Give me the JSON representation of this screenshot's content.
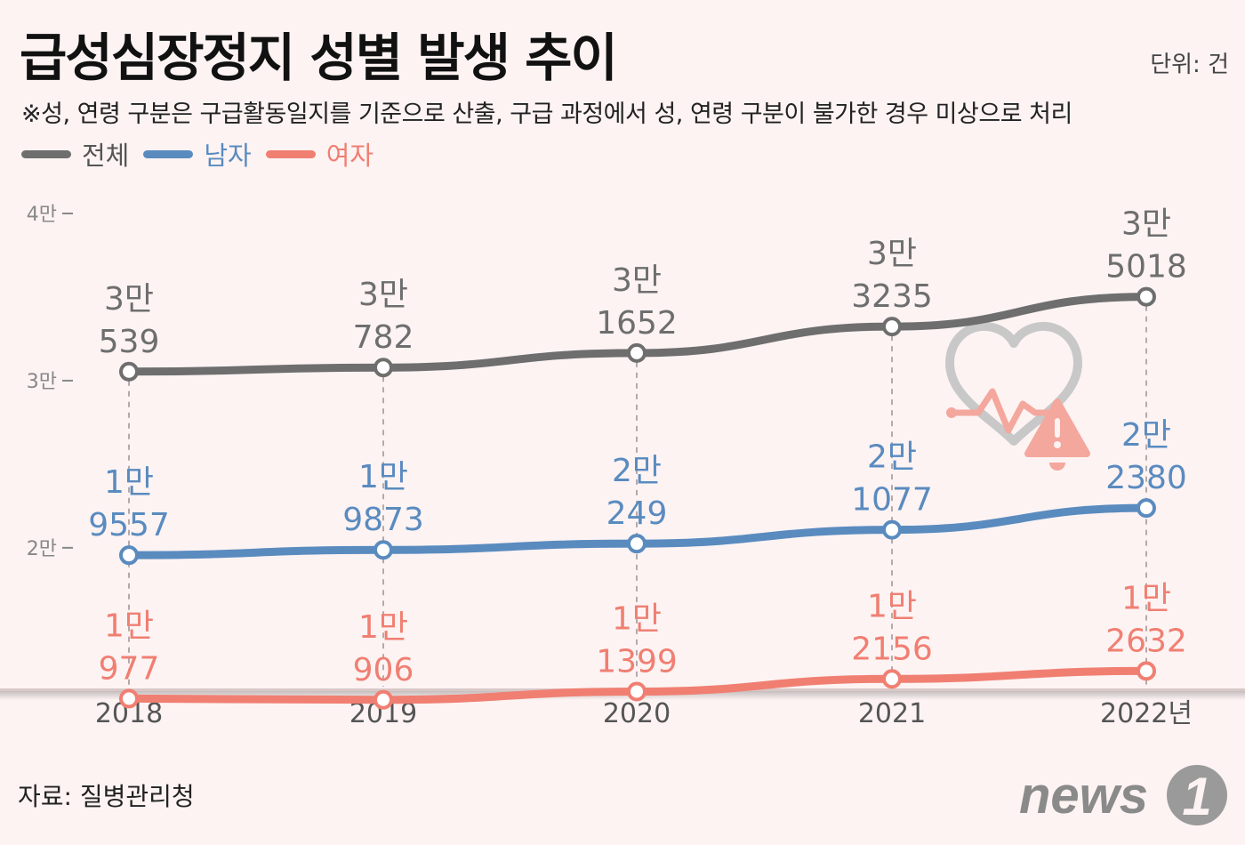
{
  "title": "급성심장정지 성별 발생 추이",
  "unit_label": "단위: 건",
  "note": "※성, 연령 구분은 구급활동일지를 기준으로 산출, 구급 과정에서 성, 연령 구분이 불가한 경우 미상으로 처리",
  "source": "자료: 질병관리청",
  "logo": {
    "text": "news",
    "digit": "1"
  },
  "colors": {
    "total": "#6e6e6e",
    "male": "#5a8bbf",
    "female": "#f07f72",
    "background": "#fdf3f3"
  },
  "chart_data": {
    "type": "line",
    "title": "급성심장정지 성별 발생 추이",
    "x": [
      "2018",
      "2019",
      "2020",
      "2021",
      "2022"
    ],
    "x_tick_labels": [
      "2018",
      "2019",
      "2020",
      "2021",
      "2022년"
    ],
    "y_ticks": [
      {
        "value": 40000,
        "label": "4만"
      },
      {
        "value": 30000,
        "label": "3만"
      },
      {
        "value": 20000,
        "label": "2만"
      }
    ],
    "ylim": [
      11000,
      40000
    ],
    "grid": false,
    "legend": "top-left",
    "series": [
      {
        "key": "total",
        "name": "전체",
        "color": "#6e6e6e",
        "values": [
          30539,
          30782,
          31652,
          33235,
          35018
        ],
        "labels": [
          [
            "3만",
            "539"
          ],
          [
            "3만",
            "782"
          ],
          [
            "3만",
            "1652"
          ],
          [
            "3만",
            "3235"
          ],
          [
            "3만",
            "5018"
          ]
        ]
      },
      {
        "key": "male",
        "name": "남자",
        "color": "#5a8bbf",
        "values": [
          19557,
          19873,
          20249,
          21077,
          22380
        ],
        "labels": [
          [
            "1만",
            "9557"
          ],
          [
            "1만",
            "9873"
          ],
          [
            "2만",
            "249"
          ],
          [
            "2만",
            "1077"
          ],
          [
            "2만",
            "2380"
          ]
        ]
      },
      {
        "key": "female",
        "name": "여자",
        "color": "#f07f72",
        "values": [
          10977,
          10906,
          11399,
          12156,
          12632
        ],
        "labels": [
          [
            "1만",
            "977"
          ],
          [
            "1만",
            "906"
          ],
          [
            "1만",
            "1399"
          ],
          [
            "1만",
            "2156"
          ],
          [
            "1만",
            "2632"
          ]
        ]
      }
    ]
  }
}
